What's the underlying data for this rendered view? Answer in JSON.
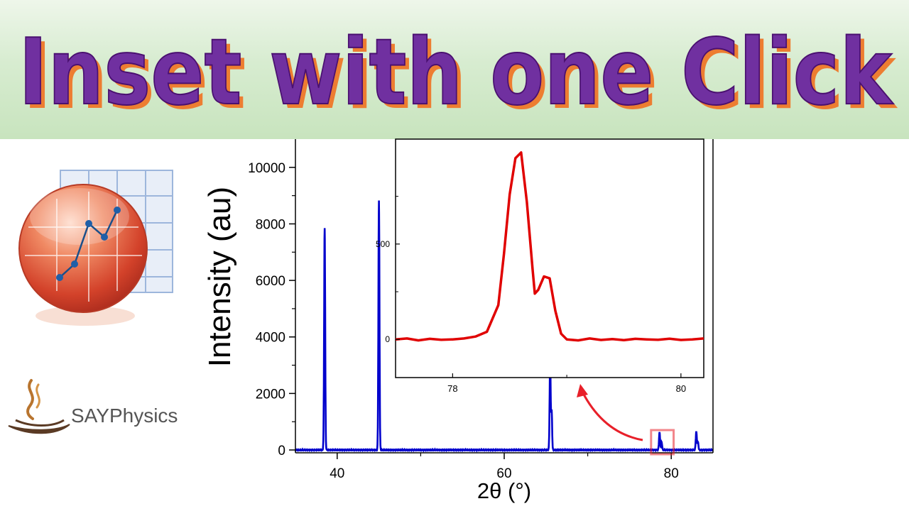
{
  "banner": {
    "title": "Inset with one Click"
  },
  "brand": {
    "name": "SAYPhysics"
  },
  "colors": {
    "banner_text": "#7030a0",
    "banner_shadow": "#ed7d31",
    "main_series": "#0000cc",
    "inset_series": "#e00000",
    "callout": "#e8202a"
  },
  "icons": {
    "logo": "origin-logo-icon",
    "brand": "steam-cup-icon"
  },
  "chart_data": [
    {
      "type": "line",
      "xlabel": "2θ (°)",
      "ylabel": "Intensity (au)",
      "xlim": [
        35,
        85
      ],
      "ylim": [
        -100,
        11000
      ],
      "xticks": [
        40,
        60,
        80
      ],
      "yticks": [
        0,
        2000,
        4000,
        6000,
        8000,
        10000
      ],
      "grid": false,
      "peaks": [
        {
          "x": 38.5,
          "y": 7850
        },
        {
          "x": 45.0,
          "y": 8850
        },
        {
          "x": 65.5,
          "y": 3100
        },
        {
          "x": 78.6,
          "y": 640
        },
        {
          "x": 83.0,
          "y": 660
        }
      ]
    },
    {
      "type": "line",
      "xlabel": "",
      "ylabel": "",
      "xlim": [
        77.5,
        80.2
      ],
      "ylim": [
        -200,
        1050
      ],
      "xticks": [
        78,
        80
      ],
      "yticks": [
        0,
        500
      ],
      "x": [
        77.5,
        77.6,
        77.7,
        77.8,
        77.9,
        78.0,
        78.1,
        78.2,
        78.3,
        78.4,
        78.45,
        78.5,
        78.55,
        78.6,
        78.65,
        78.7,
        78.72,
        78.75,
        78.8,
        78.85,
        78.9,
        78.95,
        79.0,
        79.1,
        79.2,
        79.3,
        79.4,
        79.5,
        79.6,
        79.7,
        79.8,
        79.9,
        80.0,
        80.1,
        80.2
      ],
      "y": [
        0,
        5,
        -5,
        3,
        -2,
        0,
        5,
        15,
        40,
        180,
        450,
        760,
        950,
        980,
        720,
        370,
        240,
        260,
        330,
        320,
        150,
        30,
        0,
        -5,
        5,
        -3,
        2,
        -4,
        3,
        0,
        -2,
        4,
        -3,
        0,
        5
      ]
    }
  ]
}
